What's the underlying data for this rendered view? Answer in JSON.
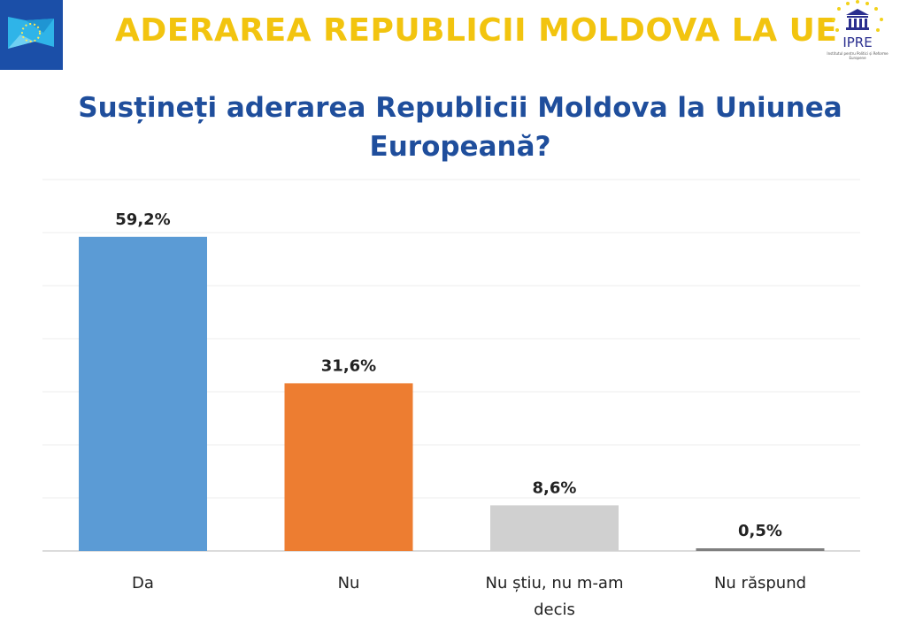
{
  "header": {
    "title": "ADERAREA REPUBLICII MOLDOVA LA UE",
    "logo_right_text": "IPRE",
    "logo_right_sub": "Institutul pentru Politici și Reforme Europene"
  },
  "chart_data": {
    "type": "bar",
    "title": "Susțineți aderarea Republicii Moldova la Uniunea Europeană?",
    "categories": [
      "Da",
      "Nu",
      "Nu știu, nu m-am decis",
      "Nu răspund"
    ],
    "values": [
      59.2,
      31.6,
      8.6,
      0.5
    ],
    "data_labels": [
      "59,2%",
      "31,6%",
      "8,6%",
      "0,5%"
    ],
    "colors": [
      "#5b9bd5",
      "#ed7d31",
      "#d0d0d0",
      "#7f7f7f"
    ],
    "xlabel": "",
    "ylabel": "",
    "ylim": [
      0,
      70
    ],
    "grid": true,
    "legend": "none"
  }
}
